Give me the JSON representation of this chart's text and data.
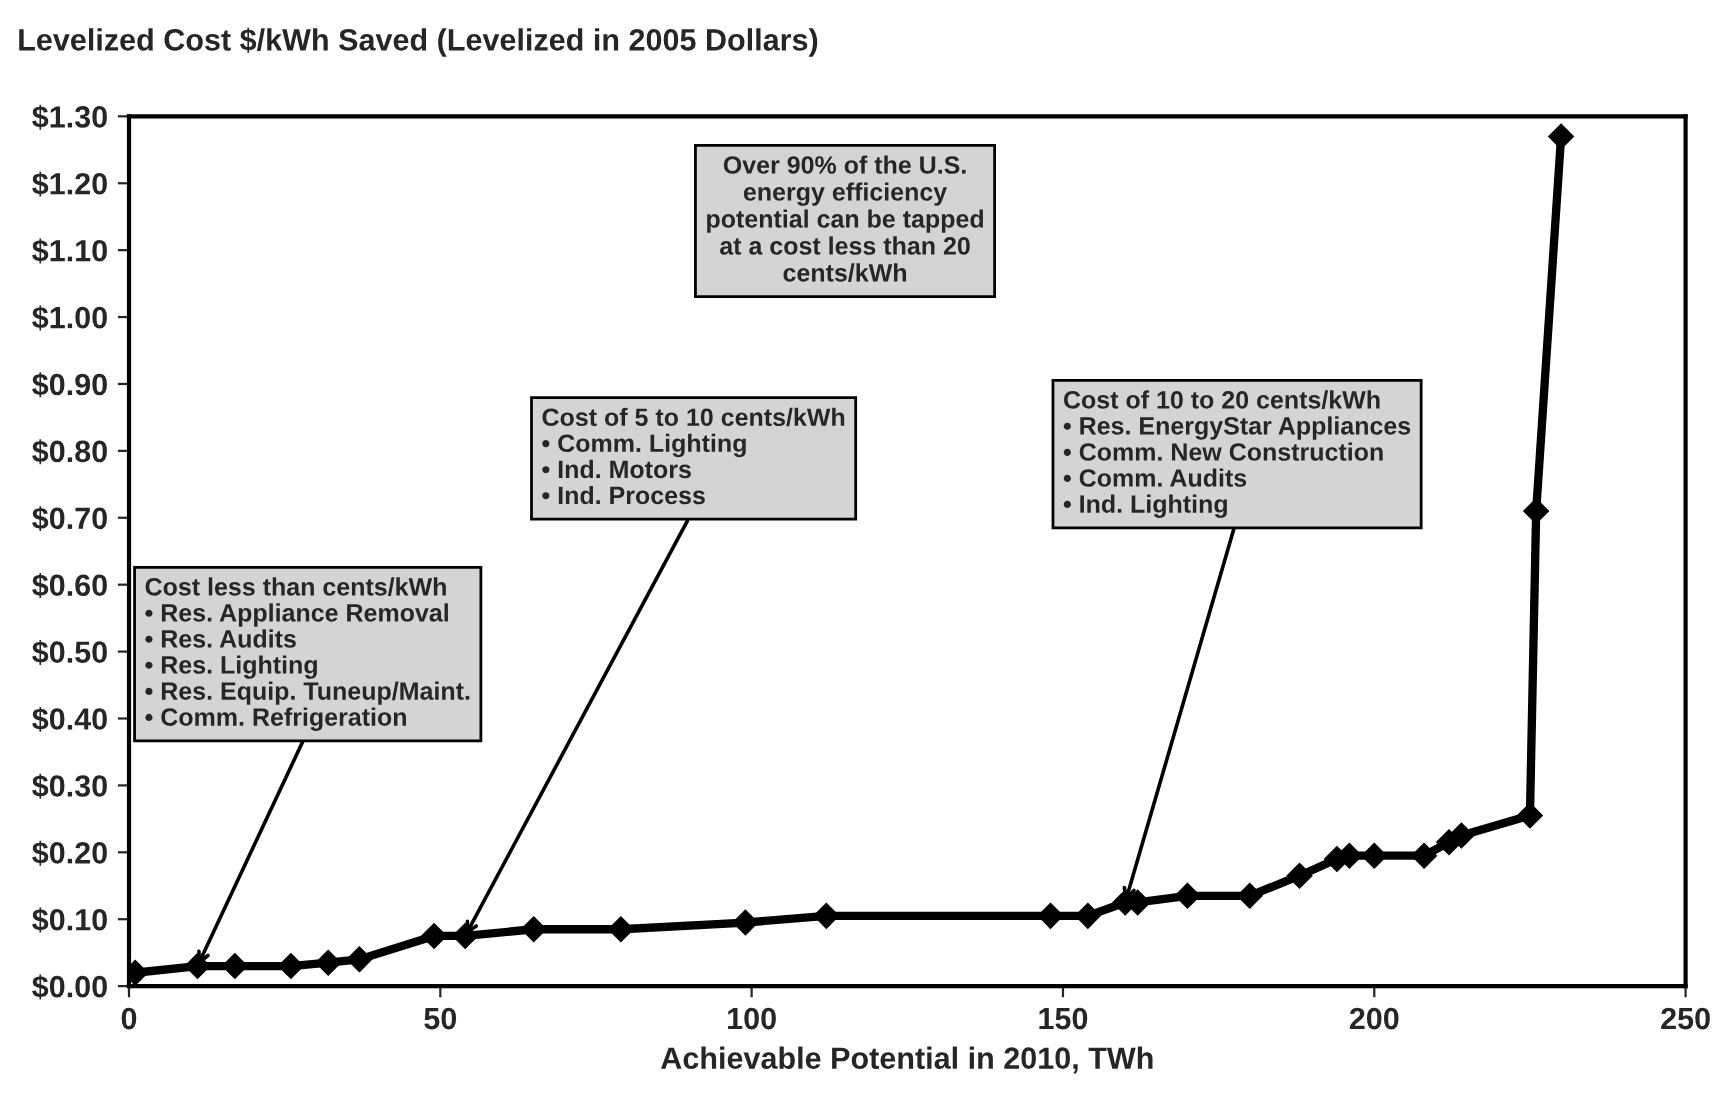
{
  "chart_data": {
    "type": "line",
    "title": "Levelized Cost $/kWh Saved (Levelized in 2005 Dollars)",
    "xlabel": "Achievable Potential in 2010, TWh",
    "x": [
      1,
      11,
      17,
      26,
      32,
      37,
      49,
      54,
      65,
      79,
      99,
      112,
      148,
      154,
      160,
      162,
      170,
      180,
      188,
      194,
      196,
      200,
      208,
      212,
      214,
      225,
      226,
      230
    ],
    "series": [
      {
        "color": "#000000",
        "values": [
          0.02,
          0.03,
          0.03,
          0.03,
          0.035,
          0.04,
          0.075,
          0.075,
          0.085,
          0.085,
          0.095,
          0.105,
          0.105,
          0.105,
          0.125,
          0.125,
          0.135,
          0.135,
          0.165,
          0.19,
          0.195,
          0.195,
          0.195,
          0.215,
          0.225,
          0.255,
          0.71,
          1.27
        ]
      }
    ],
    "marker": "diamond",
    "line_style": "solid",
    "grid": false,
    "legend": false,
    "xlim": [
      0,
      250
    ],
    "xticks": [
      0,
      50,
      100,
      150,
      200,
      250
    ],
    "ylim": [
      0,
      1.3
    ],
    "yticks": [
      {
        "value": 0,
        "label": "$0.00"
      },
      {
        "value": 0.1,
        "label": "$0.10"
      },
      {
        "value": 0.2,
        "label": "$0.20"
      },
      {
        "value": 0.3,
        "label": "$0.30"
      },
      {
        "value": 0.4,
        "label": "$0.40"
      },
      {
        "value": 0.5,
        "label": "$0.50"
      },
      {
        "value": 0.6,
        "label": "$0.60"
      },
      {
        "value": 0.7,
        "label": "$0.70"
      },
      {
        "value": 0.8,
        "label": "$0.80"
      },
      {
        "value": 0.9,
        "label": "$0.90"
      },
      {
        "value": 1.0,
        "label": "$1.00"
      },
      {
        "value": 1.1,
        "label": "$1.10"
      },
      {
        "value": 1.2,
        "label": "$1.20"
      },
      {
        "value": 1.3,
        "label": "$1.30"
      }
    ],
    "annotations": [
      "Over 90% of the U.S.\nenergy efficiency\npotential can be tapped\nat a cost less than 20\ncents/kWh",
      {
        "text": "Cost less than cents/kWh\n• Res. Appliance Removal\n• Res. Audits\n• Res. Lighting\n• Res. Equip. Tuneup/Maint.\n• Comm. Refrigeration",
        "x": 11,
        "y": 0.03
      },
      {
        "text": "Cost of 5 to 10 cents/kWh\n• Comm. Lighting\n• Ind. Motors\n• Ind. Process",
        "x": 54,
        "y": 0.075
      },
      {
        "text": "Cost of 10 to 20 cents/kWh\n• Res. EnergyStar Appliances\n• Comm. New Construction\n• Comm. Audits\n• Ind. Lighting",
        "x": 160,
        "y": 0.125
      }
    ]
  }
}
